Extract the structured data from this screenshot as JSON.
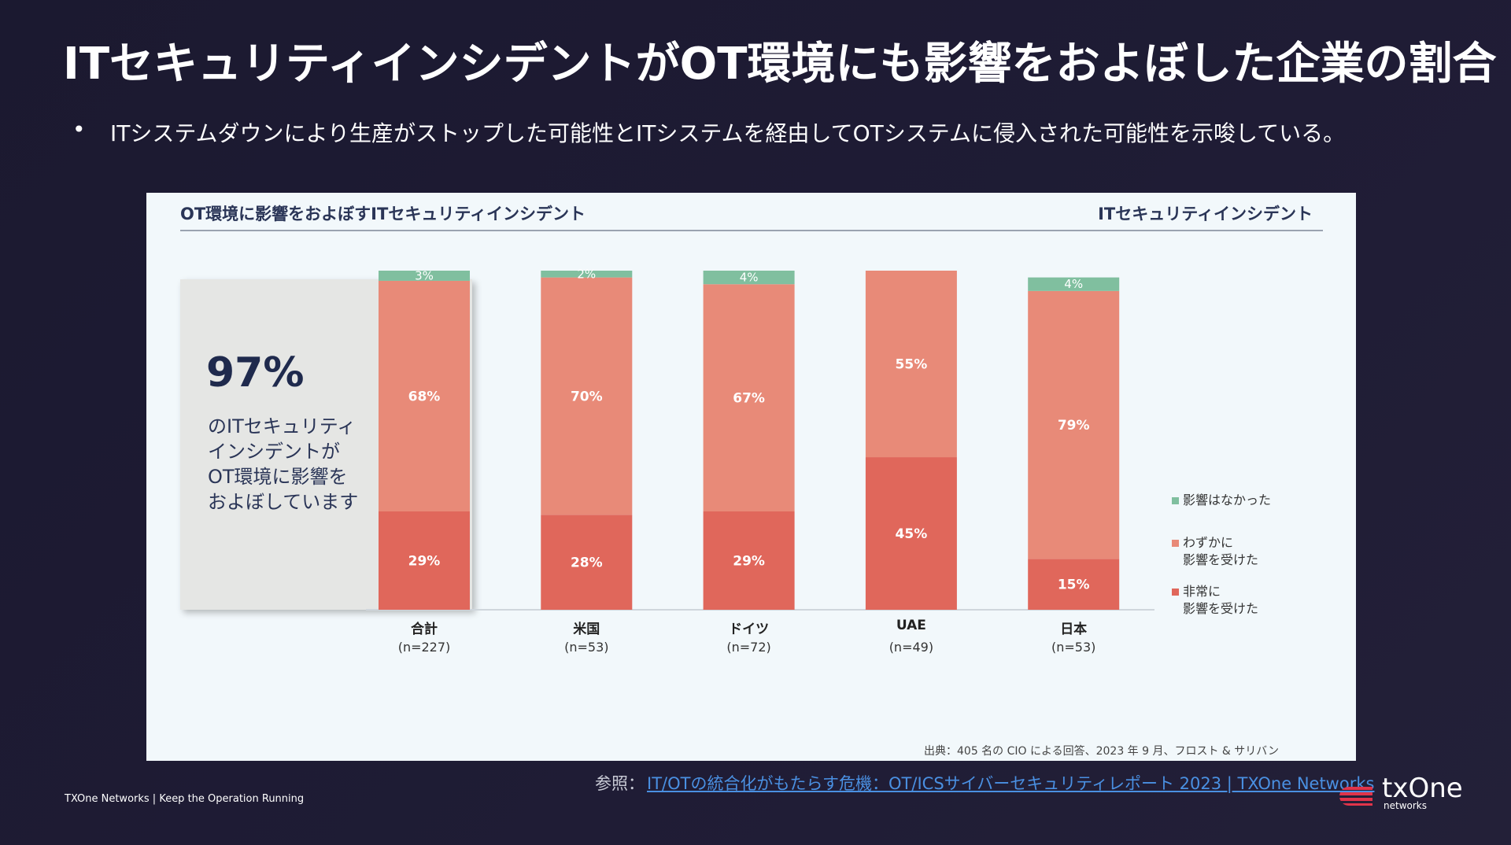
{
  "slide": {
    "title": "ITセキュリティインシデントがOT環境にも影響をおよぼした企業の割合",
    "bullet": "ITシステムダウンにより生産がストップした可能性とITシステムを経由してOTシステムに侵入された可能性を示唆している。",
    "reference_label": "参照：",
    "reference_link": "IT/OTの統合化がもたらす危機：OT/ICSサイバーセキュリティレポート 2023 | TXOne Networks",
    "footer": "TXOne Networks | Keep the Operation Running",
    "logo": "txOne",
    "logo_sub": "networks"
  },
  "chart_data": {
    "type": "stacked-bar",
    "title": "OT環境に影響をおよぼすITセキュリティインシデント",
    "subtitle": "ITセキュリティインシデント",
    "callout_value": "97%",
    "callout_text": "のITセキュリティ\nインシデントが\nOT環境に影響を\nおよぼしています",
    "source": "出典：405 名の CIO による回答、2023 年 9 月、フロスト & サリバン",
    "categories": [
      "合計",
      "米国",
      "ドイツ",
      "UAE",
      "日本"
    ],
    "sample_sizes": [
      "(n=227)",
      "(n=53)",
      "(n=72)",
      "(n=49)",
      "(n=53)"
    ],
    "ylim": [
      0,
      100
    ],
    "series": [
      {
        "name": "非常に\n影響を受けた",
        "color": "#e0675b",
        "values": [
          29,
          28,
          29,
          45,
          15
        ],
        "value_labels": [
          "29%",
          "28%",
          "29%",
          "45%",
          "15%"
        ]
      },
      {
        "name": "わずかに\n影響を受けた",
        "color": "#e88a78",
        "values": [
          68,
          70,
          67,
          55,
          79
        ],
        "value_labels": [
          "68%",
          "70%",
          "67%",
          "55%",
          "79%"
        ]
      },
      {
        "name": "影響はなかった",
        "color": "#80bf9f",
        "values": [
          3,
          2,
          4,
          0,
          4
        ],
        "value_labels": [
          "3%",
          "2%",
          "4%",
          null,
          "4%"
        ]
      }
    ]
  }
}
